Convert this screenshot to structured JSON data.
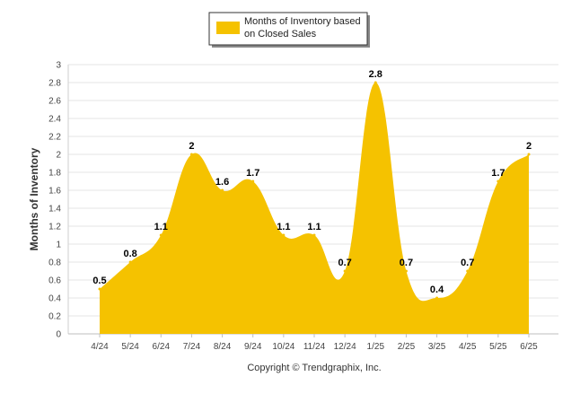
{
  "legend": {
    "line1": "Months of Inventory based",
    "line2": "on Closed Sales"
  },
  "copyright": "Copyright © Trendgraphix, Inc.",
  "colors": {
    "area_fill": "#F5C200",
    "gridline": "#E6E6E6",
    "legend_border": "#333333"
  },
  "chart_data": {
    "type": "area",
    "title": "",
    "xlabel": "",
    "ylabel": "Months of Inventory",
    "categories": [
      "4/24",
      "5/24",
      "6/24",
      "7/24",
      "8/24",
      "9/24",
      "10/24",
      "11/24",
      "12/24",
      "1/25",
      "2/25",
      "3/25",
      "4/25",
      "5/25",
      "6/25"
    ],
    "series": [
      {
        "name": "Months of Inventory based on Closed Sales",
        "values": [
          0.5,
          0.8,
          1.1,
          2,
          1.6,
          1.7,
          1.1,
          1.1,
          0.7,
          2.8,
          0.7,
          0.4,
          0.7,
          1.7,
          2
        ],
        "labels": [
          "0.5",
          "0.8",
          "1.1",
          "2",
          "1.6",
          "1.7",
          "1.1",
          "1.1",
          "0.7",
          "2.8",
          "0.7",
          "0.4",
          "0.7",
          "1.7",
          "2"
        ]
      }
    ],
    "ylim": [
      0,
      3
    ],
    "yticks": [
      "0",
      "0.2",
      "0.4",
      "0.6",
      "0.8",
      "1",
      "1.2",
      "1.4",
      "1.6",
      "1.8",
      "2",
      "2.2",
      "2.4",
      "2.6",
      "2.8",
      "3"
    ],
    "grid": true,
    "legend_position": "top-center"
  }
}
